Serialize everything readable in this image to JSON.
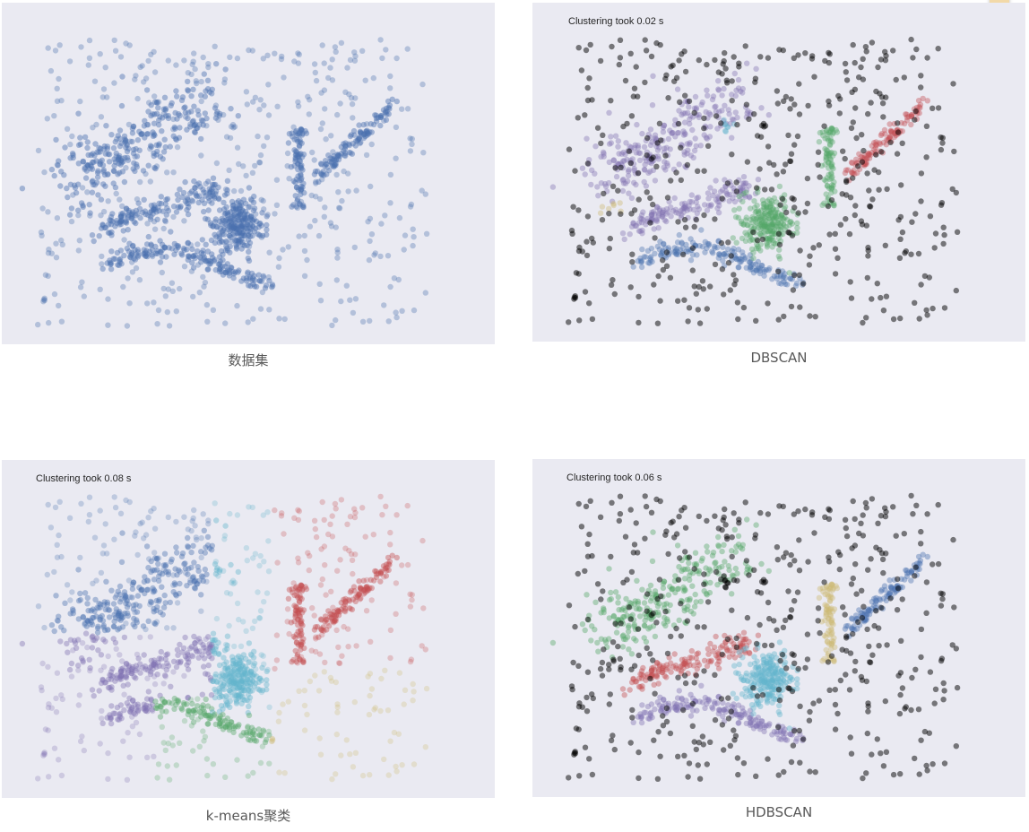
{
  "panels": {
    "dataset": {
      "caption": "数据集",
      "timing": ""
    },
    "dbscan": {
      "caption": "DBSCAN",
      "timing": "Clustering took 0.02 s"
    },
    "kmeans": {
      "caption": "k-means聚类",
      "timing": "Clustering took 0.08 s"
    },
    "hdbscan": {
      "caption": "HDBSCAN",
      "timing": "Clustering took 0.06 s"
    }
  },
  "chart_data": [
    {
      "type": "scatter",
      "title": "",
      "xlabel": "",
      "ylabel": "",
      "grid": false,
      "background": "#eaeaf2",
      "series": [
        {
          "color": "#4c72b0",
          "points_approx": 1600
        }
      ]
    },
    {
      "type": "scatter",
      "title": "",
      "xlabel": "",
      "ylabel": "",
      "grid": false,
      "background": "#eaeaf2",
      "clusters": [
        {
          "shape": "upper-left arc",
          "color": "#8172b2"
        },
        {
          "shape": "left curve",
          "color": "#8172b2"
        },
        {
          "shape": "bottom wave",
          "color": "#4c72b0"
        },
        {
          "shape": "center blob",
          "color": "#55a868"
        },
        {
          "shape": "vertical bar",
          "color": "#55a868"
        },
        {
          "shape": "right diagonal",
          "color": "#c44e52"
        },
        {
          "shape": "small fragment",
          "color": "#ccb974"
        },
        {
          "shape": "small fragment",
          "color": "#64b5cd"
        },
        {
          "shape": "noise",
          "color": "#000000"
        }
      ]
    },
    {
      "type": "scatter",
      "title": "",
      "xlabel": "",
      "ylabel": "",
      "grid": false,
      "background": "#eaeaf2",
      "clusters": [
        {
          "region": "upper-left",
          "color": "#4c72b0"
        },
        {
          "region": "left",
          "color": "#8172b2"
        },
        {
          "region": "bottom",
          "color": "#55a868"
        },
        {
          "region": "center",
          "color": "#64b5cd"
        },
        {
          "region": "center-right",
          "color": "#ccb974"
        },
        {
          "region": "upper-right",
          "color": "#c44e52"
        }
      ]
    },
    {
      "type": "scatter",
      "title": "",
      "xlabel": "",
      "ylabel": "",
      "grid": false,
      "background": "#eaeaf2",
      "clusters": [
        {
          "shape": "upper-left arc",
          "color": "#55a868"
        },
        {
          "shape": "left curve",
          "color": "#c44e52"
        },
        {
          "shape": "bottom wave",
          "color": "#8172b2"
        },
        {
          "shape": "center blob",
          "color": "#64b5cd"
        },
        {
          "shape": "vertical bar",
          "color": "#ccb974"
        },
        {
          "shape": "right diagonal",
          "color": "#4c72b0"
        },
        {
          "shape": "noise",
          "color": "#000000"
        }
      ]
    }
  ]
}
